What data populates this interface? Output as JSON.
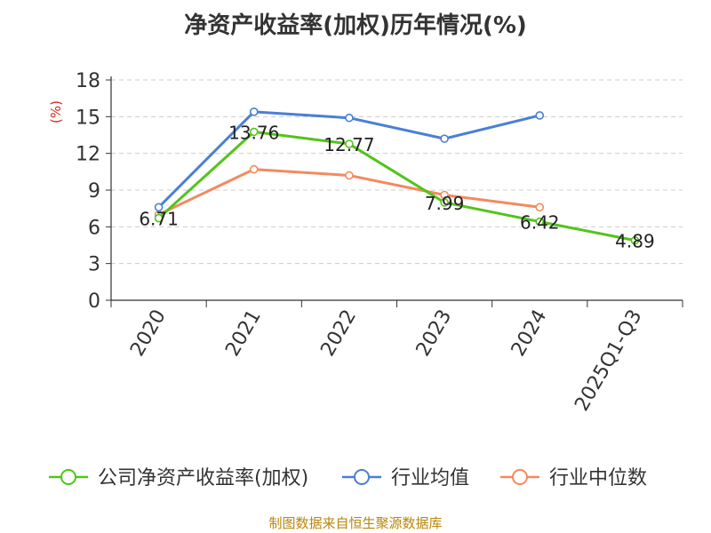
{
  "chart_data": {
    "type": "line",
    "title": "净资产收益率(加权)历年情况(%)",
    "ylabel": "(%)",
    "xlabel": "",
    "ylim": [
      0,
      18
    ],
    "yticks": [
      0,
      3,
      6,
      9,
      12,
      15,
      18
    ],
    "categories": [
      "2020",
      "2021",
      "2022",
      "2023",
      "2024",
      "2025Q1-Q3"
    ],
    "grid": true,
    "legend_position": "bottom",
    "series": [
      {
        "name": "公司净资产收益率(加权)",
        "color": "#52c41a",
        "values": [
          6.71,
          13.76,
          12.77,
          7.99,
          6.42,
          4.89
        ],
        "labels": [
          "6.71",
          "13.76",
          "12.77",
          "7.99",
          "6.42",
          "4.89"
        ]
      },
      {
        "name": "行业均值",
        "color": "#4a7fd6",
        "values": [
          7.6,
          15.4,
          14.9,
          13.2,
          15.1,
          null
        ]
      },
      {
        "name": "行业中位数",
        "color": "#f4895f",
        "values": [
          7.0,
          10.7,
          10.2,
          8.6,
          7.6,
          null
        ]
      }
    ]
  },
  "source": "制图数据来自恒生聚源数据库"
}
